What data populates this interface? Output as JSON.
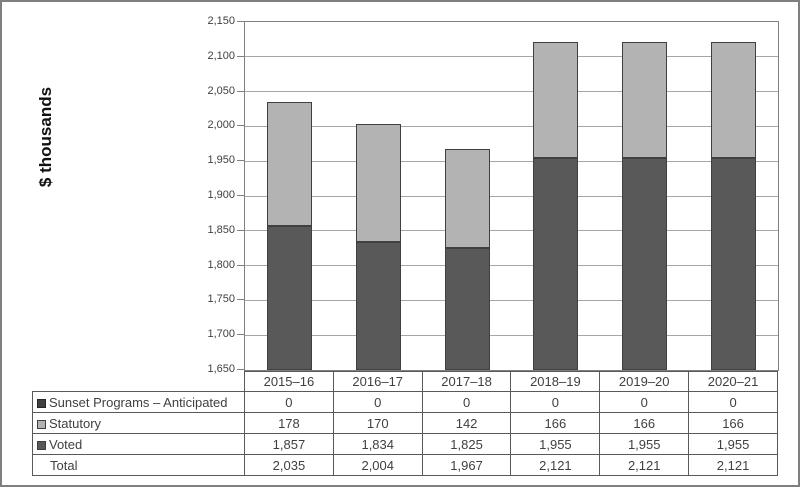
{
  "frame": {
    "background": "#ffffff",
    "border_color": "#7f7f7f"
  },
  "chart_data": {
    "type": "bar",
    "stacked": true,
    "title": "",
    "ylabel": "$ thousands",
    "xlabel": "",
    "categories": [
      "2015–16",
      "2016–17",
      "2017–18",
      "2018–19",
      "2019–20",
      "2020–21"
    ],
    "series": [
      {
        "name": "Sunset Programs – Anticipated",
        "values": [
          0,
          0,
          0,
          0,
          0,
          0
        ],
        "color": "#404040",
        "border": "#262626"
      },
      {
        "name": "Statutory",
        "values": [
          178,
          170,
          142,
          166,
          166,
          166
        ],
        "color": "#b3b3b3",
        "border": "#404040"
      },
      {
        "name": "Voted",
        "values": [
          1857,
          1834,
          1825,
          1955,
          1955,
          1955
        ],
        "color": "#595959",
        "border": "#404040"
      }
    ],
    "stack_order_bottom_to_top": [
      "Voted",
      "Statutory",
      "Sunset Programs – Anticipated"
    ],
    "totals_row": {
      "label": "Total",
      "values": [
        2035,
        2004,
        1967,
        2121,
        2121,
        2121
      ]
    },
    "ylim": [
      1650,
      2150
    ],
    "ytick_step": 50,
    "grid": true,
    "gridline_color": "#a6a6a6",
    "axis_color": "#808080",
    "legend_position": "table-row-markers"
  },
  "table": {
    "border_color": "#595959",
    "text_color": "#404040"
  }
}
